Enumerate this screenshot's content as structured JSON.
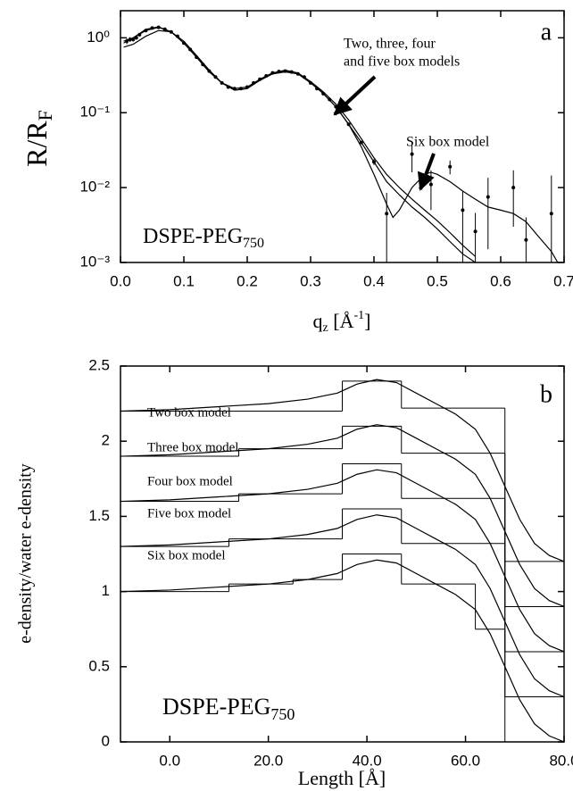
{
  "chart_data": [
    {
      "type": "line",
      "label": "a",
      "y_label": [
        "R/R",
        "F"
      ],
      "x_label": [
        "q",
        "z",
        " [Å",
        "-1",
        "]"
      ],
      "annotation": [
        "DSPE-PEG",
        "750"
      ],
      "notes": [
        "Two, three, four",
        "and five box models",
        "Six  box model"
      ],
      "log_y": true,
      "color": "#000000",
      "xlim": [
        0,
        0.7
      ],
      "ylim": [
        0.001,
        2.3
      ],
      "xticks": [
        {
          "value": 0,
          "label": "0.0"
        },
        0.1,
        0.2,
        0.3,
        0.4,
        0.5,
        0.6,
        0.7
      ],
      "yticks": [
        {
          "value": 0.001,
          "label": "10⁻³"
        },
        {
          "value": 0.01,
          "label": "10⁻²"
        },
        {
          "value": 0.1,
          "label": "10⁻¹"
        },
        {
          "value": 1,
          "label": "10⁰"
        }
      ],
      "series": [
        {
          "x": [
            0.005,
            0.02,
            0.04,
            0.06,
            0.08,
            0.1,
            0.12,
            0.14,
            0.16,
            0.18,
            0.2,
            0.22,
            0.24,
            0.26,
            0.28,
            0.3,
            0.32,
            0.34,
            0.36,
            0.38,
            0.4,
            0.42,
            0.44,
            0.46,
            0.48,
            0.5,
            0.52,
            0.54,
            0.56
          ],
          "values": [
            0.85,
            1.0,
            1.25,
            1.38,
            1.2,
            0.85,
            0.55,
            0.36,
            0.25,
            0.21,
            0.22,
            0.28,
            0.34,
            0.36,
            0.33,
            0.25,
            0.18,
            0.12,
            0.07,
            0.04,
            0.022,
            0.012,
            0.008,
            0.0055,
            0.004,
            0.0028,
            0.0019,
            0.0013,
            0.001
          ]
        },
        {
          "x": [
            0.005,
            0.02,
            0.04,
            0.06,
            0.08,
            0.1,
            0.12,
            0.14,
            0.16,
            0.18,
            0.2,
            0.22,
            0.24,
            0.26,
            0.28,
            0.3,
            0.32,
            0.34,
            0.36,
            0.38,
            0.4,
            0.42,
            0.44,
            0.46,
            0.48,
            0.5,
            0.52,
            0.54,
            0.56
          ],
          "values": [
            0.75,
            0.82,
            1.05,
            1.25,
            1.2,
            0.9,
            0.58,
            0.37,
            0.25,
            0.2,
            0.21,
            0.27,
            0.33,
            0.35,
            0.33,
            0.26,
            0.19,
            0.13,
            0.08,
            0.045,
            0.025,
            0.015,
            0.01,
            0.007,
            0.005,
            0.0036,
            0.0025,
            0.0017,
            0.0012
          ]
        },
        {
          "x": [
            0.005,
            0.02,
            0.04,
            0.06,
            0.08,
            0.1,
            0.12,
            0.14,
            0.16,
            0.18,
            0.2,
            0.22,
            0.24,
            0.26,
            0.28,
            0.3,
            0.32,
            0.34,
            0.36,
            0.38,
            0.4,
            0.42,
            0.43,
            0.44,
            0.46,
            0.48,
            0.49,
            0.5,
            0.52,
            0.54,
            0.56,
            0.58,
            0.6,
            0.62,
            0.64,
            0.66,
            0.68,
            0.69
          ],
          "values": [
            0.9,
            1.0,
            1.3,
            1.4,
            1.2,
            0.85,
            0.55,
            0.35,
            0.25,
            0.2,
            0.21,
            0.28,
            0.34,
            0.37,
            0.34,
            0.26,
            0.18,
            0.12,
            0.07,
            0.035,
            0.015,
            0.006,
            0.004,
            0.005,
            0.01,
            0.015,
            0.016,
            0.015,
            0.012,
            0.009,
            0.007,
            0.0055,
            0.005,
            0.0045,
            0.0035,
            0.0022,
            0.0014,
            0.001
          ]
        }
      ],
      "points": {
        "x": [
          0.01,
          0.015,
          0.02,
          0.025,
          0.03,
          0.04,
          0.05,
          0.06,
          0.07,
          0.08,
          0.09,
          0.1,
          0.11,
          0.12,
          0.13,
          0.14,
          0.15,
          0.16,
          0.17,
          0.18,
          0.19,
          0.2,
          0.21,
          0.22,
          0.23,
          0.24,
          0.25,
          0.26,
          0.27,
          0.28,
          0.29,
          0.3,
          0.31,
          0.32,
          0.33,
          0.34,
          0.36,
          0.38,
          0.4,
          0.42,
          0.46,
          0.49,
          0.52,
          0.54,
          0.56,
          0.58,
          0.62,
          0.64,
          0.68
        ],
        "values": [
          0.9,
          0.95,
          0.95,
          1.0,
          1.1,
          1.25,
          1.35,
          1.38,
          1.3,
          1.2,
          1.05,
          0.85,
          0.7,
          0.55,
          0.44,
          0.36,
          0.3,
          0.25,
          0.22,
          0.21,
          0.21,
          0.22,
          0.25,
          0.28,
          0.31,
          0.34,
          0.355,
          0.36,
          0.35,
          0.33,
          0.3,
          0.25,
          0.21,
          0.18,
          0.15,
          0.12,
          0.07,
          0.04,
          0.022,
          0.0045,
          0.028,
          0.011,
          0.019,
          0.005,
          0.0026,
          0.0075,
          0.01,
          0.002,
          0.0045
        ],
        "errors": [
          0.08,
          0.07,
          0.06,
          0.05,
          0.05,
          0.04,
          0.04,
          0.04,
          0.03,
          0.03,
          0.03,
          0.02,
          0.02,
          0.02,
          0.01,
          0.01,
          0.01,
          0.01,
          0.005,
          0.005,
          0.005,
          0.005,
          0.005,
          0.005,
          0.005,
          0.005,
          0.005,
          0.005,
          0.005,
          0.005,
          0.005,
          0.005,
          0.005,
          0.005,
          0.005,
          0.004,
          0.003,
          0.002,
          0.002,
          0.004,
          0.012,
          0.006,
          0.004,
          0.004,
          0.002,
          0.006,
          0.007,
          0.002,
          0.01
        ]
      }
    },
    {
      "type": "line",
      "label": "b",
      "y_label": "e-density/water e-density",
      "x_label": "Length [Å]",
      "annotation": [
        "DSPE-PEG",
        "750"
      ],
      "notes": [
        "Two box model",
        "Three box model",
        "Four box model",
        "Five box model",
        "Six box model"
      ],
      "log_y": false,
      "color": "#000000",
      "xlim": [
        -10,
        80
      ],
      "ylim": [
        0,
        2.5
      ],
      "xticks": [
        {
          "value": 0,
          "label": "0.0"
        },
        {
          "value": 20,
          "label": "20.0"
        },
        {
          "value": 40,
          "label": "40.0"
        },
        {
          "value": 60,
          "label": "60.0"
        },
        {
          "value": 80,
          "label": "80.0"
        }
      ],
      "yticks": [
        0,
        0.5,
        1,
        1.5,
        2,
        2.5
      ],
      "series": [
        {
          "x": [
            -10,
            0,
            10,
            20,
            28,
            34,
            38,
            42,
            46,
            50,
            54,
            58,
            62,
            65,
            68,
            71,
            74,
            77,
            80
          ],
          "values": [
            2.2,
            2.21,
            2.23,
            2.25,
            2.28,
            2.32,
            2.38,
            2.41,
            2.39,
            2.32,
            2.25,
            2.18,
            2.08,
            1.92,
            1.7,
            1.48,
            1.32,
            1.24,
            1.2
          ]
        },
        {
          "x": [
            -10,
            0,
            10,
            20,
            28,
            34,
            38,
            42,
            46,
            50,
            54,
            58,
            62,
            65,
            68,
            71,
            74,
            77,
            80
          ],
          "values": [
            1.9,
            1.91,
            1.93,
            1.95,
            1.98,
            2.02,
            2.08,
            2.11,
            2.09,
            2.02,
            1.95,
            1.88,
            1.78,
            1.62,
            1.4,
            1.18,
            1.02,
            0.94,
            0.9
          ]
        },
        {
          "x": [
            -10,
            0,
            10,
            20,
            28,
            34,
            38,
            42,
            46,
            50,
            54,
            58,
            62,
            65,
            68,
            71,
            74,
            77,
            80
          ],
          "values": [
            1.6,
            1.61,
            1.63,
            1.65,
            1.68,
            1.72,
            1.78,
            1.81,
            1.79,
            1.72,
            1.65,
            1.58,
            1.48,
            1.32,
            1.1,
            0.88,
            0.72,
            0.64,
            0.6
          ]
        },
        {
          "x": [
            -10,
            0,
            10,
            20,
            28,
            34,
            38,
            42,
            46,
            50,
            54,
            58,
            62,
            65,
            68,
            71,
            74,
            77,
            80
          ],
          "values": [
            1.3,
            1.31,
            1.33,
            1.35,
            1.38,
            1.42,
            1.48,
            1.51,
            1.49,
            1.42,
            1.35,
            1.28,
            1.18,
            1.02,
            0.8,
            0.58,
            0.42,
            0.34,
            0.3
          ]
        },
        {
          "x": [
            -10,
            0,
            10,
            20,
            28,
            34,
            38,
            42,
            46,
            50,
            54,
            58,
            62,
            65,
            68,
            71,
            74,
            77,
            80
          ],
          "values": [
            1.0,
            1.01,
            1.03,
            1.05,
            1.08,
            1.12,
            1.18,
            1.21,
            1.19,
            1.12,
            1.05,
            0.98,
            0.88,
            0.72,
            0.5,
            0.28,
            0.12,
            0.04,
            0.0
          ]
        },
        {
          "edges": [
            -10,
            35,
            47,
            68,
            80
          ],
          "values": [
            2.2,
            2.4,
            2.22,
            1.2
          ]
        },
        {
          "edges": [
            -10,
            14,
            35,
            47,
            68,
            80
          ],
          "values": [
            1.9,
            1.95,
            2.1,
            1.92,
            0.9
          ]
        },
        {
          "edges": [
            -10,
            14,
            35,
            47,
            68,
            80
          ],
          "values": [
            1.6,
            1.65,
            1.85,
            1.62,
            0.6
          ]
        },
        {
          "edges": [
            -10,
            12,
            35,
            47,
            68,
            80
          ],
          "values": [
            1.3,
            1.35,
            1.55,
            1.32,
            0.3
          ]
        },
        {
          "edges": [
            -10,
            12,
            25,
            35,
            47,
            62,
            68,
            80
          ],
          "values": [
            1.0,
            1.05,
            1.08,
            1.25,
            1.05,
            0.75,
            0.0
          ]
        }
      ]
    }
  ]
}
